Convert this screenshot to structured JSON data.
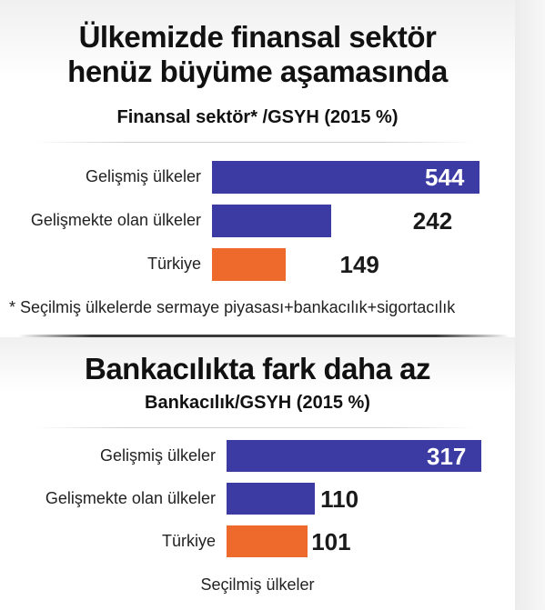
{
  "colors": {
    "blue": "#3b3ba3",
    "orange": "#ee6a2c"
  },
  "chart_data": [
    {
      "type": "bar",
      "orientation": "horizontal",
      "title": "Ülkemizde finansal sektör henüz büyüme aşamasında",
      "title_lines": [
        "Ülkemizde finansal sektör",
        "henüz büyüme aşamasında"
      ],
      "subtitle": "Finansal sektör* /GSYH (2015 %)",
      "categories": [
        "Gelişmiş ülkeler",
        "Gelişmekte olan ülkeler",
        "Türkiye"
      ],
      "values": [
        544,
        242,
        149
      ],
      "labels": [
        "544",
        "242",
        "149"
      ],
      "bar_colors": [
        "#3b3ba3",
        "#3b3ba3",
        "#ee6a2c"
      ],
      "footnote": "* Seçilmiş ülkelerde sermaye piyasası+bankacılık+sigortacılık",
      "grid": false,
      "legend": "none"
    },
    {
      "type": "bar",
      "orientation": "horizontal",
      "title": "Bankacılıkta fark daha az",
      "title_lines": [
        "Bankacılıkta fark daha az"
      ],
      "subtitle": "Bankacılık/GSYH (2015 %)",
      "categories": [
        "Gelişmiş ülkeler",
        "Gelişmekte olan ülkeler",
        "Türkiye"
      ],
      "values": [
        317,
        110,
        101
      ],
      "labels": [
        "317",
        "110",
        "101"
      ],
      "bar_colors": [
        "#3b3ba3",
        "#3b3ba3",
        "#ee6a2c"
      ],
      "footnote": "Seçilmiş ülkeler",
      "grid": false,
      "legend": "none"
    }
  ]
}
